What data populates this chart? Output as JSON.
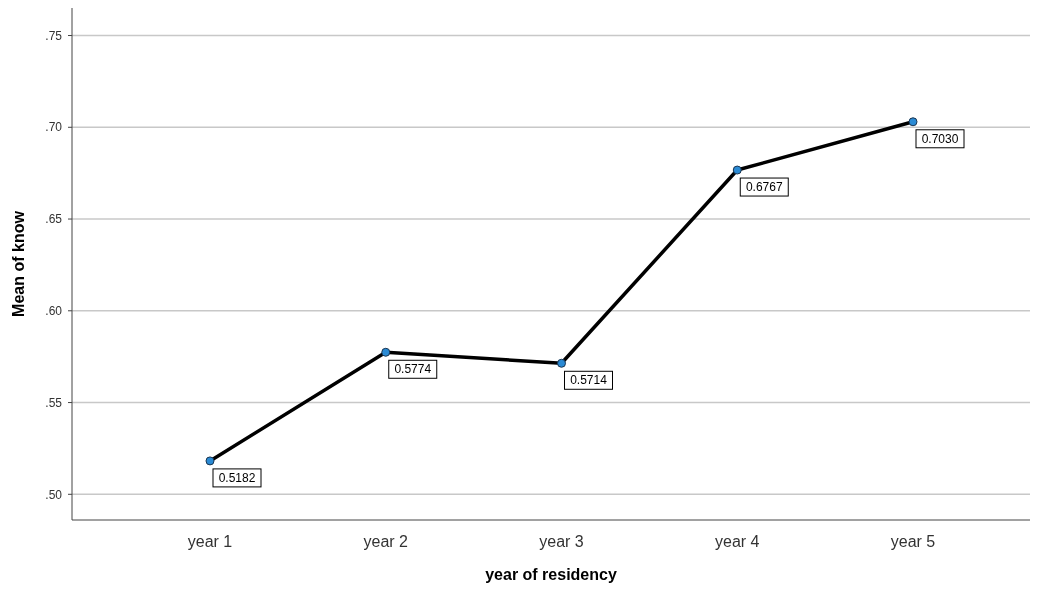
{
  "chart_data": {
    "type": "line",
    "xlabel": "year of residency",
    "ylabel": "Mean of know",
    "categories": [
      "year 1",
      "year 2",
      "year 3",
      "year 4",
      "year 5"
    ],
    "series": [
      {
        "color": "#000000",
        "values": [
          0.5182,
          0.5774,
          0.5714,
          0.6767,
          0.703
        ]
      }
    ],
    "value_labels": [
      "0.5182",
      "0.5774",
      "0.5714",
      "0.6767",
      "0.7030"
    ],
    "ylim": [
      0.486,
      0.765
    ],
    "yticks": [
      {
        "value": 0.5,
        "label": ".50"
      },
      {
        "value": 0.55,
        "label": ".55"
      },
      {
        "value": 0.6,
        "label": ".60"
      },
      {
        "value": 0.65,
        "label": ".65"
      },
      {
        "value": 0.7,
        "label": ".70"
      },
      {
        "value": 0.75,
        "label": ".75"
      }
    ],
    "grid": "y",
    "marker": "circle",
    "line_style": "solid"
  }
}
